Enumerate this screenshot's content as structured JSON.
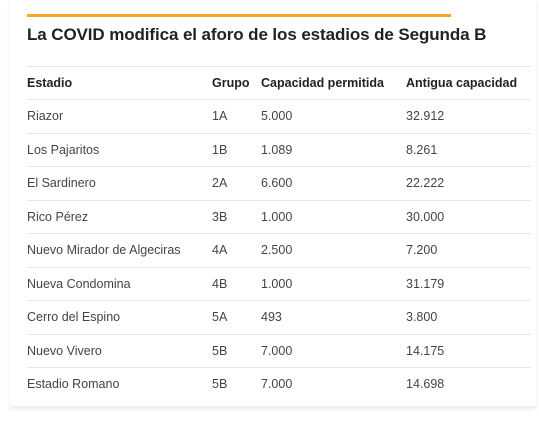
{
  "colors": {
    "accent": "#f5a623",
    "title_text": "#222222",
    "body_text": "#444444",
    "row_border": "#e6e6e6"
  },
  "title": "La COVID modifica el aforo de los estadios de Segunda B",
  "table": {
    "headers": [
      "Estadio",
      "Grupo",
      "Capacidad permitida",
      "Antigua capacidad"
    ],
    "rows": [
      [
        "Riazor",
        "1A",
        "5.000",
        "32.912"
      ],
      [
        "Los Pajaritos",
        "1B",
        "1.089",
        "8.261"
      ],
      [
        "El Sardinero",
        "2A",
        "6.600",
        "22.222"
      ],
      [
        "Rico Pérez",
        "3B",
        "1.000",
        "30.000"
      ],
      [
        "Nuevo Mirador de Algeciras",
        "4A",
        "2.500",
        "7.200"
      ],
      [
        "Nueva Condomina",
        "4B",
        "1.000",
        "31.179"
      ],
      [
        "Cerro del Espino",
        "5A",
        "493",
        "3.800"
      ],
      [
        "Nuevo Vivero",
        "5B",
        "7.000",
        "14.175"
      ],
      [
        "Estadio Romano",
        "5B",
        "7.000",
        "14.698"
      ]
    ]
  }
}
